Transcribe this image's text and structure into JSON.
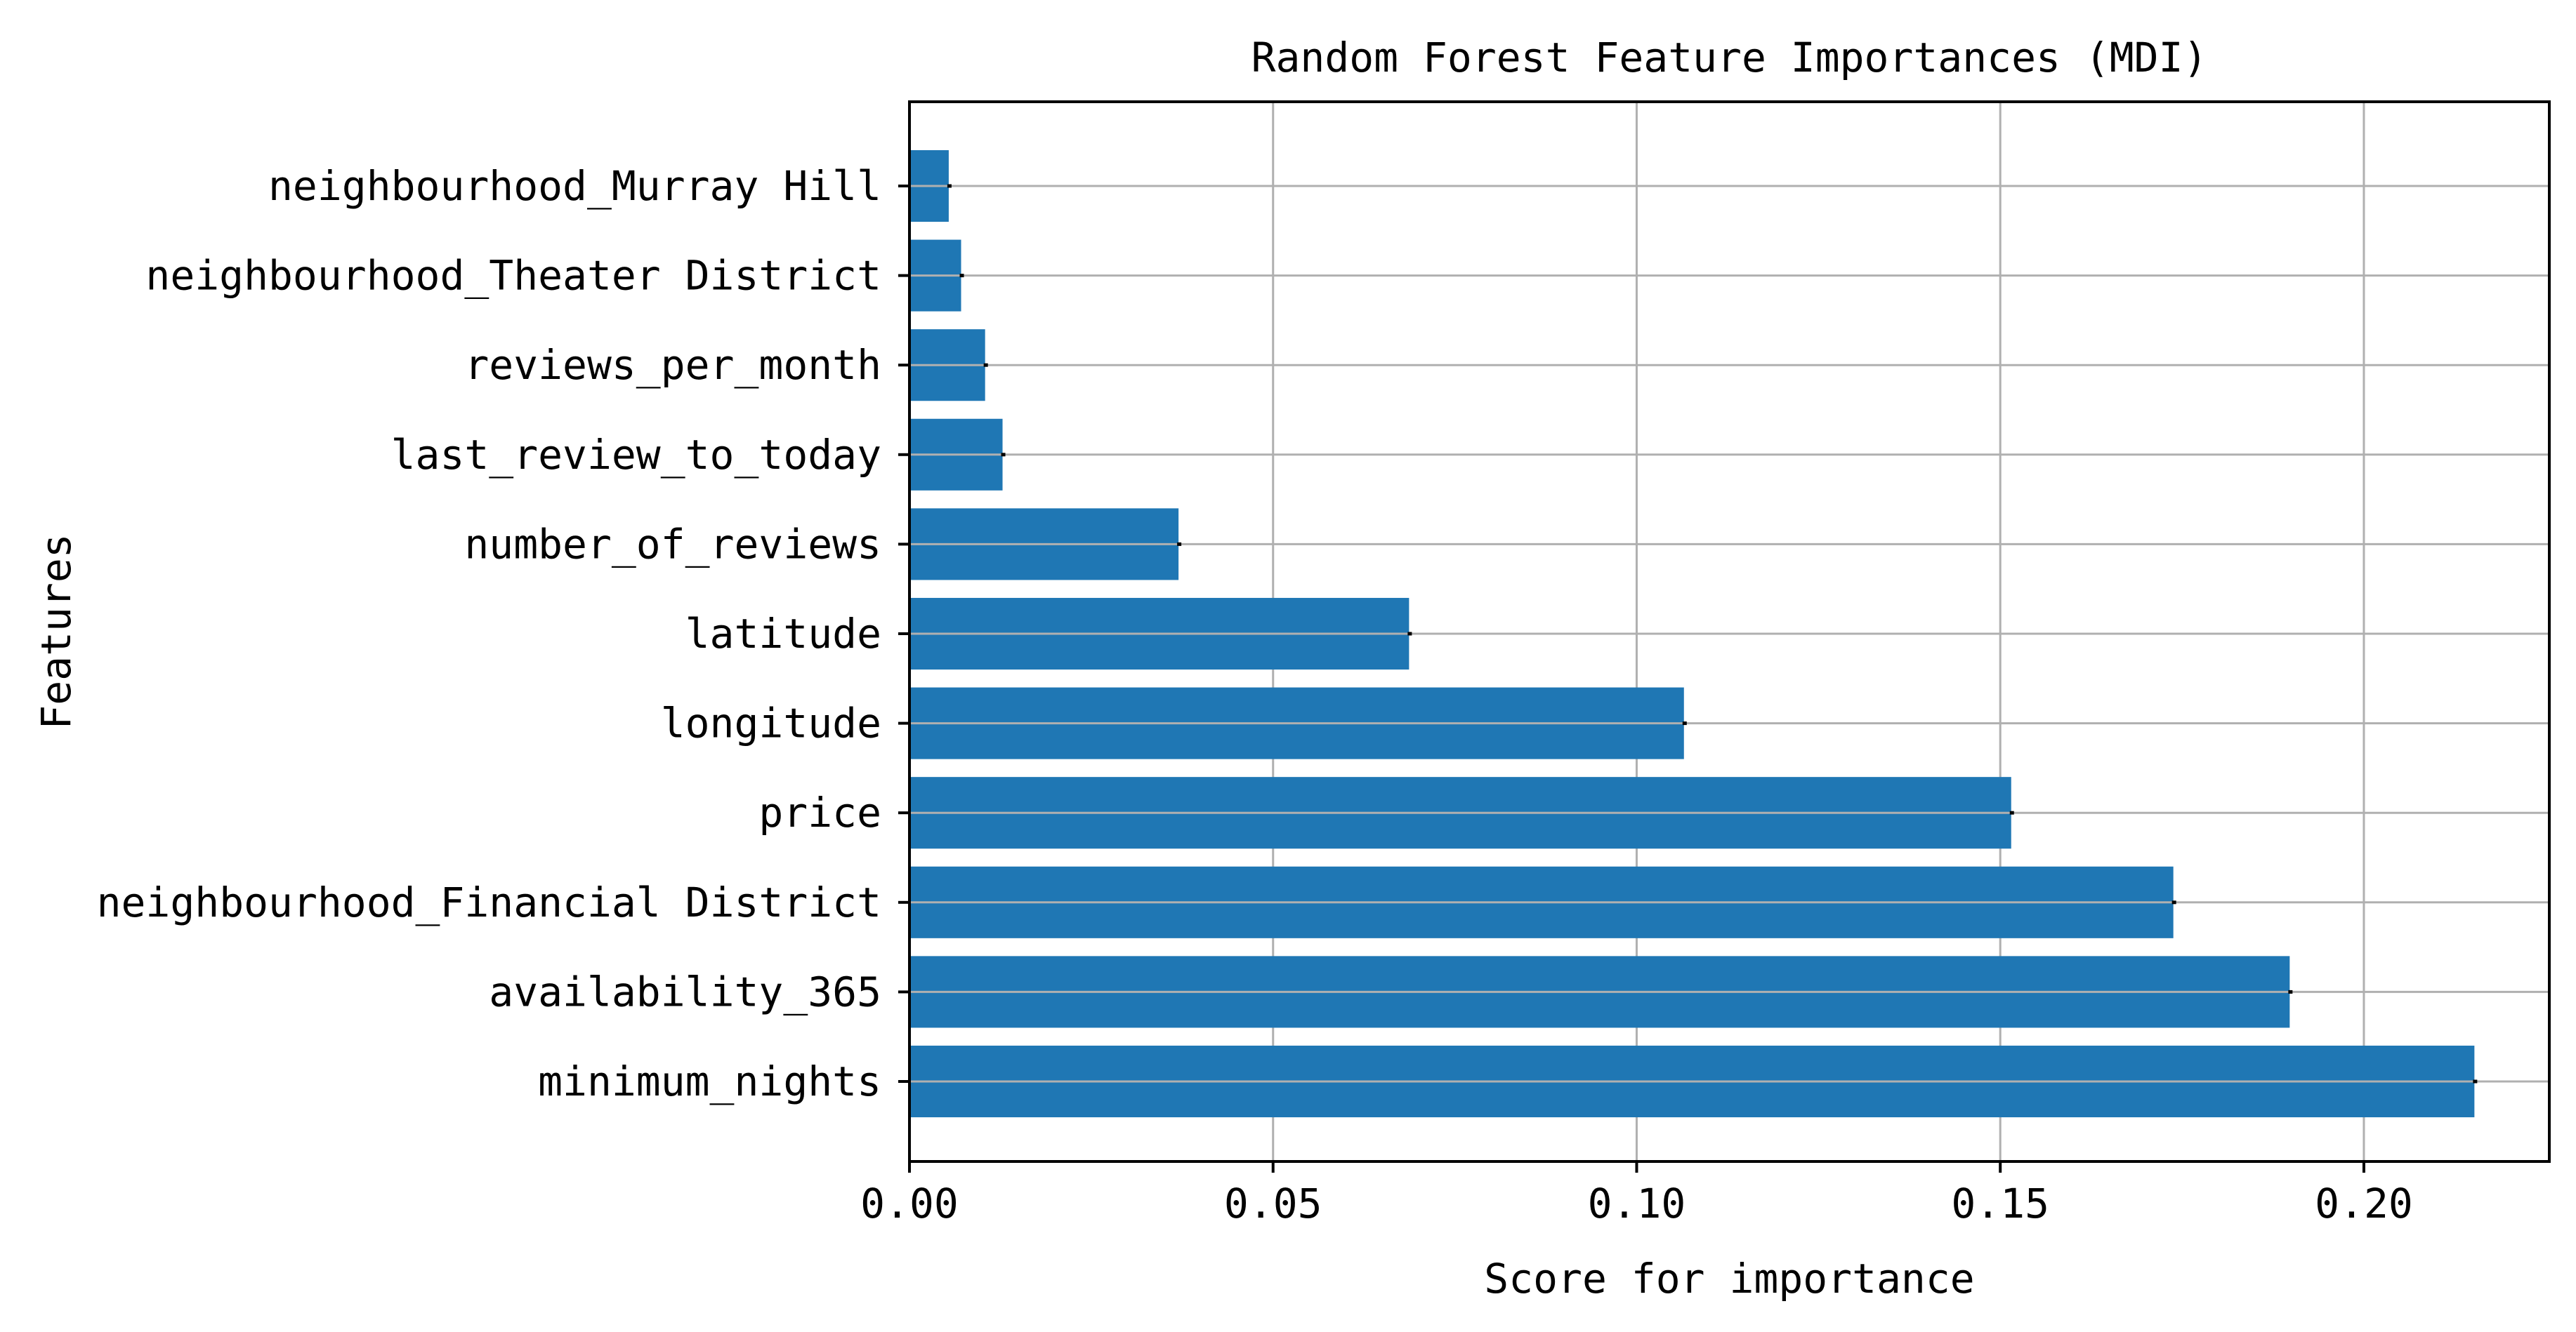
{
  "chart_data": {
    "type": "bar",
    "orientation": "horizontal",
    "title": "Random Forest Feature Importances (MDI)",
    "xlabel": "Score for importance",
    "ylabel": "Features",
    "categories": [
      "minimum_nights",
      "availability_365",
      "neighbourhood_Financial District",
      "price",
      "longitude",
      "latitude",
      "number_of_reviews",
      "last_review_to_today",
      "reviews_per_month",
      "neighbourhood_Theater District",
      "neighbourhood_Murray Hill"
    ],
    "values": [
      0.2152,
      0.1898,
      0.1738,
      0.1515,
      0.1065,
      0.0687,
      0.037,
      0.0128,
      0.0104,
      0.0071,
      0.0054
    ],
    "xlim": [
      0.0,
      0.2255
    ],
    "xticks": [
      0.0,
      0.05,
      0.1,
      0.15,
      0.2
    ],
    "xtick_labels": [
      "0.00",
      "0.05",
      "0.10",
      "0.15",
      "0.20"
    ],
    "grid": true,
    "error_bars": true,
    "bar_color": "#1f77b4",
    "grid_color": "#b0b0b0",
    "legend": "none"
  }
}
